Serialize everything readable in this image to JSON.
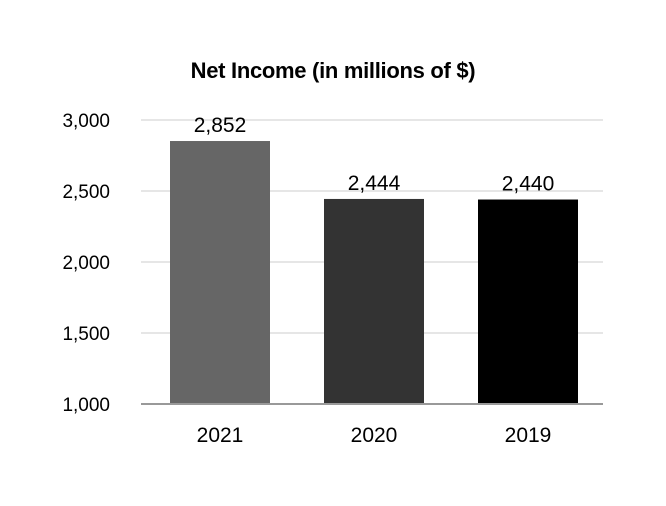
{
  "chart_data": {
    "type": "bar",
    "title": "Net Income (in millions of $)",
    "xlabel": "",
    "ylabel": "",
    "categories": [
      "2021",
      "2020",
      "2019"
    ],
    "values": [
      2852,
      2444,
      2440
    ],
    "value_labels": [
      "2,852",
      "2,444",
      "2,440"
    ],
    "bar_colors": [
      "#666666",
      "#333333",
      "#000000"
    ],
    "ylim": [
      1000,
      3000
    ],
    "yticks": [
      1000,
      1500,
      2000,
      2500,
      3000
    ],
    "ytick_labels": [
      "1,000",
      "1,500",
      "2,000",
      "2,500",
      "3,000"
    ],
    "grid": true,
    "grid_color": "#e6e6e6",
    "baseline_color": "#999999",
    "legend": "none"
  }
}
